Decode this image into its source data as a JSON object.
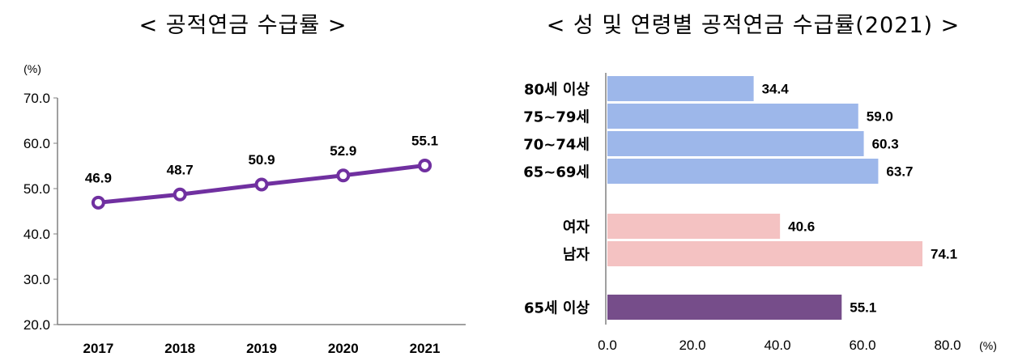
{
  "chart_data": [
    {
      "type": "line",
      "title": "< 공적연금 수급률 >",
      "unit": "(%)",
      "categories": [
        "2017",
        "2018",
        "2019",
        "2020",
        "2021"
      ],
      "series": [
        {
          "values": [
            46.9,
            48.7,
            50.9,
            52.9,
            55.1
          ],
          "labels": [
            "46.9",
            "48.7",
            "50.9",
            "52.9",
            "55.1"
          ]
        }
      ],
      "ylim": [
        20,
        70
      ],
      "yticks": [
        "20.0",
        "30.0",
        "40.0",
        "50.0",
        "60.0",
        "70.0"
      ],
      "grid": false,
      "color": "#7030a0"
    },
    {
      "type": "bar",
      "orientation": "horizontal",
      "title": "< 성 및 연령별 공적연금 수급률(2021) >",
      "unit": "(%)",
      "categories": [
        "80세 이상",
        "75~79세",
        "70~74세",
        "65~69세",
        "여자",
        "남자",
        "65세 이상"
      ],
      "values": [
        34.4,
        59.0,
        60.3,
        63.7,
        40.6,
        74.1,
        55.1
      ],
      "labels": [
        "34.4",
        "59.0",
        "60.3",
        "63.7",
        "40.6",
        "74.1",
        "55.1"
      ],
      "groups": [
        "age",
        "age",
        "age",
        "age",
        "sex",
        "sex",
        "total"
      ],
      "xlim": [
        0,
        80
      ],
      "xticks": [
        "0.0",
        "20.0",
        "40.0",
        "60.0",
        "80.0"
      ],
      "grid": false,
      "colors": {
        "age": "#9db7ea",
        "sex": "#f4c2c2",
        "total": "#764d8a"
      }
    }
  ]
}
